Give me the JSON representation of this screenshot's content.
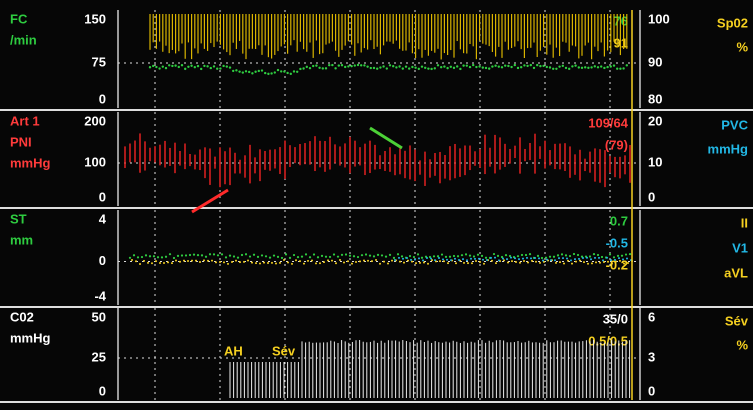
{
  "panels": [
    {
      "labels": [
        "FC",
        "/min"
      ],
      "left_scale": [
        "150",
        "75",
        "0"
      ],
      "right_scale": [
        "100",
        "90",
        "80"
      ],
      "right_labels": [
        "Sp02",
        "%"
      ],
      "readouts": [
        "76",
        "91"
      ],
      "annotations": []
    },
    {
      "labels": [
        "Art 1",
        "PNI",
        "mmHg"
      ],
      "left_scale": [
        "200",
        "100",
        "0"
      ],
      "right_scale": [
        "20",
        "10",
        "0"
      ],
      "right_labels": [
        "PVC",
        "mmHg"
      ],
      "readouts": [
        "109/64",
        "(79)"
      ],
      "annotations": []
    },
    {
      "labels": [
        "ST",
        "mm"
      ],
      "left_scale": [
        "4",
        "0",
        "-4"
      ],
      "right_scale": [],
      "right_labels": [
        "II",
        "V1",
        "aVL"
      ],
      "readouts": [
        "0.7",
        "-0.5",
        "-0.2"
      ],
      "annotations": []
    },
    {
      "labels": [
        "C02",
        "mmHg"
      ],
      "left_scale": [
        "50",
        "25",
        "0"
      ],
      "right_scale": [
        "6",
        "3",
        "0"
      ],
      "right_labels": [
        "Sév",
        "%"
      ],
      "readouts": [
        "35/0",
        "0.5/0.5"
      ],
      "annotations": [
        "AH",
        "Sév"
      ]
    }
  ]
}
